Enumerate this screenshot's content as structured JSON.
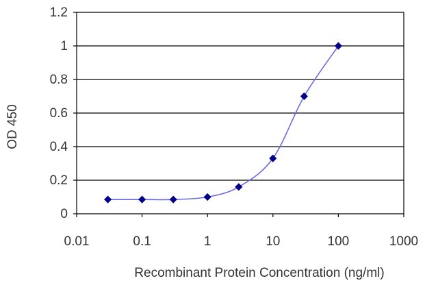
{
  "chart_data": {
    "type": "line",
    "title": "",
    "xlabel": "Recombinant Protein Concentration (ng/ml)",
    "ylabel": "OD 450",
    "x_scale": "log",
    "xlim": [
      0.01,
      1000
    ],
    "ylim": [
      0,
      1.2
    ],
    "x_ticks": [
      0.01,
      0.1,
      1,
      10,
      100,
      1000
    ],
    "x_tick_labels": [
      "0.01",
      "0.1",
      "1",
      "10",
      "100",
      "1000"
    ],
    "y_ticks": [
      0,
      0.2,
      0.4,
      0.6,
      0.8,
      1,
      1.2
    ],
    "y_tick_labels": [
      "0",
      "0.2",
      "0.4",
      "0.6",
      "0.8",
      "1",
      "1.2"
    ],
    "grid": "horizontal",
    "legend": "none",
    "series": [
      {
        "x": [
          0.03,
          0.1,
          0.3,
          1,
          3,
          10,
          30,
          100
        ],
        "y": [
          0.085,
          0.085,
          0.085,
          0.1,
          0.16,
          0.33,
          0.7,
          1.0
        ],
        "color": "#00008b",
        "line_color": "#6a6ae0",
        "marker": "diamond"
      }
    ],
    "colors": {
      "grid": "#000000",
      "axis": "#000000",
      "text": "#333333"
    }
  }
}
